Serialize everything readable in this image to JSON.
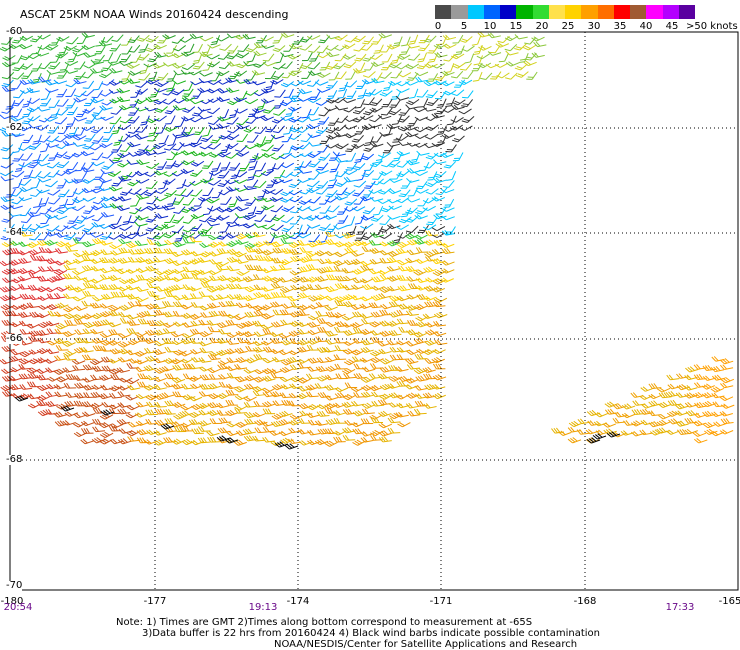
{
  "header": {
    "title": "ASCAT 25KM NOAA Winds 20160424 descending",
    "units": ">50 knots"
  },
  "colorbar": {
    "colors": [
      "#4a4a4a",
      "#9a9a9a",
      "#00c8ff",
      "#0064ff",
      "#0000c8",
      "#00b400",
      "#32dc32",
      "#ffe14b",
      "#ffd200",
      "#ffa000",
      "#ff6e00",
      "#ff0000",
      "#a05a32",
      "#ff00ff",
      "#b400ff",
      "#5a00a0"
    ],
    "labels": [
      "0",
      "5",
      "10",
      "15",
      "20",
      "25",
      "30",
      "35",
      "40",
      "45"
    ]
  },
  "map": {
    "lat_labels": [
      "-60",
      "-62",
      "-64",
      "-66",
      "-68",
      "-70"
    ],
    "lon_labels": [
      "-180",
      "-177",
      "-174",
      "-171",
      "-168",
      "-165"
    ],
    "time_labels": [
      "20:54",
      "19:13",
      "17:33"
    ]
  },
  "notes": {
    "line1": "Note: 1) Times are GMT 2)Times along bottom correspond to measurement at -65S",
    "line2": "3)Data buffer is 22 hrs from 20160424 4) Black wind barbs indicate possible contamination",
    "line3": "NOAA/NESDIS/Center for Satellite Applications and Research"
  }
}
